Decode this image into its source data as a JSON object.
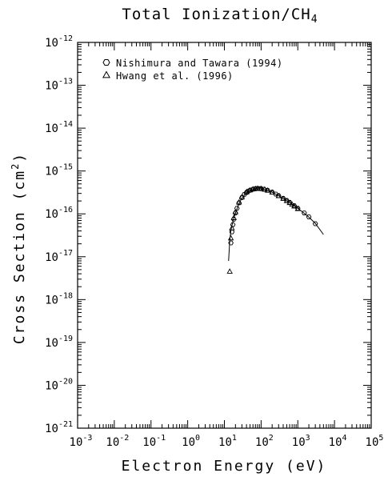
{
  "chart_data": {
    "type": "scatter",
    "title": "Total Ionization/CH4",
    "title_main": "Total Ionization/CH",
    "title_sub": "4",
    "xlabel": "Electron Energy (eV)",
    "ylabel_main": "Cross Section (cm",
    "ylabel_sup": "2",
    "ylabel_end": ")",
    "x_scale": "log",
    "y_scale": "log",
    "xlim": [
      0.001,
      100000
    ],
    "ylim": [
      1e-21,
      1e-12
    ],
    "x_tick_base": "10",
    "x_tick_exponents": [
      "-3",
      "-2",
      "-1",
      "0",
      "1",
      "2",
      "3",
      "4",
      "5"
    ],
    "y_tick_base": "10",
    "y_tick_exponents": [
      "-21",
      "-20",
      "-19",
      "-18",
      "-17",
      "-16",
      "-15",
      "-14",
      "-13",
      "-12"
    ],
    "grid": false,
    "legend_position": "top-left",
    "series": [
      {
        "name": "Nishimura and Tawara (1994)",
        "marker": "hexagon",
        "x": [
          15,
          16,
          17,
          18,
          20,
          22,
          25,
          30,
          35,
          40,
          45,
          50,
          60,
          70,
          80,
          90,
          100,
          120,
          150,
          200,
          250,
          300,
          400,
          500,
          600,
          800,
          1000,
          1500,
          2000,
          3000
        ],
        "y": [
          2.1e-17,
          3.8e-17,
          5.6e-17,
          7.5e-17,
          1.05e-16,
          1.35e-16,
          1.8e-16,
          2.4e-16,
          2.85e-16,
          3.15e-16,
          3.4e-16,
          3.55e-16,
          3.75e-16,
          3.85e-16,
          3.9e-16,
          3.9e-16,
          3.85e-16,
          3.75e-16,
          3.55e-16,
          3.2e-16,
          2.9e-16,
          2.65e-16,
          2.3e-16,
          2.05e-16,
          1.85e-16,
          1.55e-16,
          1.35e-16,
          1.05e-16,
          8.5e-17,
          5.9e-17
        ]
      },
      {
        "name": "Hwang et al. (1996)",
        "marker": "triangle",
        "x": [
          14,
          15,
          16,
          18,
          20,
          25,
          30,
          40,
          50,
          60,
          70,
          80,
          100,
          125,
          150,
          200,
          300,
          400,
          500,
          600,
          700,
          800,
          1000
        ],
        "y": [
          4.5e-18,
          2.7e-17,
          4.6e-17,
          8e-17,
          1.1e-16,
          1.85e-16,
          2.45e-16,
          3.2e-16,
          3.55e-16,
          3.75e-16,
          3.85e-16,
          3.9e-16,
          3.85e-16,
          3.7e-16,
          3.5e-16,
          3.15e-16,
          2.6e-16,
          2.25e-16,
          2e-16,
          1.8e-16,
          1.65e-16,
          1.5e-16,
          1.3e-16
        ]
      },
      {
        "name": "",
        "marker": "line",
        "x": [
          13,
          14,
          15,
          16,
          18,
          20,
          25,
          30,
          40,
          50,
          60,
          80,
          100,
          150,
          200,
          300,
          500,
          700,
          1000,
          1500,
          2000,
          3000,
          5000
        ],
        "y": [
          8e-18,
          2.4e-17,
          4e-17,
          5.3e-17,
          7.8e-17,
          1.05e-16,
          1.75e-16,
          2.35e-16,
          3.1e-16,
          3.5e-16,
          3.7e-16,
          3.88e-16,
          3.85e-16,
          3.55e-16,
          3.2e-16,
          2.65e-16,
          2e-16,
          1.68e-16,
          1.35e-16,
          1.03e-16,
          8.4e-17,
          6e-17,
          3.3e-17
        ]
      }
    ]
  }
}
